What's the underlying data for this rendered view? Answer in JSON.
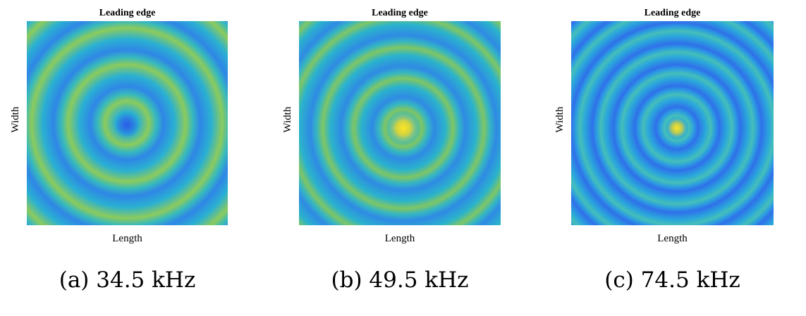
{
  "panels": [
    {
      "title": "Leading edge",
      "x_label": "Length",
      "y_label": "Width",
      "caption": "(a) 34.5 kHz"
    },
    {
      "title": "Leading edge",
      "x_label": "Length",
      "y_label": "Width",
      "caption": "(b) 49.5 kHz"
    },
    {
      "title": "Leading edge",
      "x_label": "Length",
      "y_label": "Width",
      "caption": "(c) 74.5 kHz"
    }
  ]
}
